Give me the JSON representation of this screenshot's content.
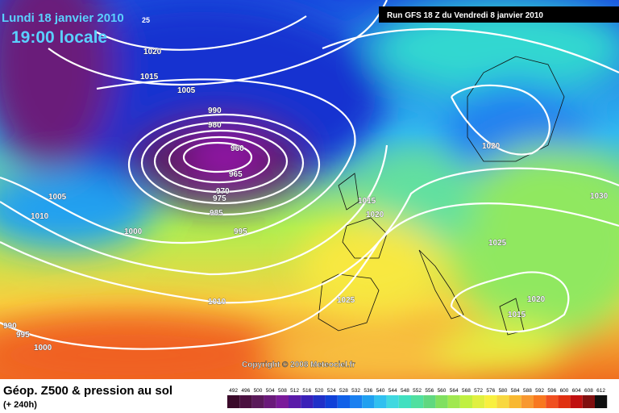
{
  "header": {
    "date": "Lundi 18 janvier 2010",
    "time": "19:00 locale",
    "run": "Run GFS 18 Z du Vendredi 8 janvier 2010",
    "corner": "25"
  },
  "isobar_labels": [
    "1020",
    "1015",
    "1005",
    "990",
    "980",
    "960",
    "965",
    "970",
    "975",
    "985",
    "995",
    "1005",
    "1010",
    "1000",
    "1010",
    "990",
    "995",
    "1000",
    "1015",
    "1020",
    "1025",
    "1020",
    "1030",
    "1025",
    "1020",
    "1015"
  ],
  "copyright": "Copyright © 2008 Meteociel.fr",
  "footer": {
    "title": "Géop. Z500 & pression au sol",
    "lead": "(+ 240h)"
  },
  "legend": {
    "labels": [
      "492",
      "496",
      "500",
      "504",
      "508",
      "512",
      "516",
      "520",
      "524",
      "528",
      "532",
      "536",
      "540",
      "544",
      "548",
      "552",
      "556",
      "560",
      "564",
      "568",
      "572",
      "576",
      "580",
      "584",
      "588",
      "592",
      "596",
      "600",
      "604",
      "608",
      "612"
    ],
    "colors": [
      "#3a0a2a",
      "#4a1040",
      "#5a1a5a",
      "#6a1a7a",
      "#7a1a9a",
      "#5a1aa8",
      "#3a20b8",
      "#2030c8",
      "#1040d8",
      "#1060e8",
      "#1a80f0",
      "#20a0f0",
      "#30c0f0",
      "#40d8e0",
      "#40e0c0",
      "#50e0a0",
      "#60d880",
      "#80e060",
      "#a0e850",
      "#c0f040",
      "#e0f040",
      "#f8f040",
      "#f8d840",
      "#f8b830",
      "#f89830",
      "#f87820",
      "#f05020",
      "#e03010",
      "#c01010",
      "#801010",
      "#101010"
    ]
  }
}
